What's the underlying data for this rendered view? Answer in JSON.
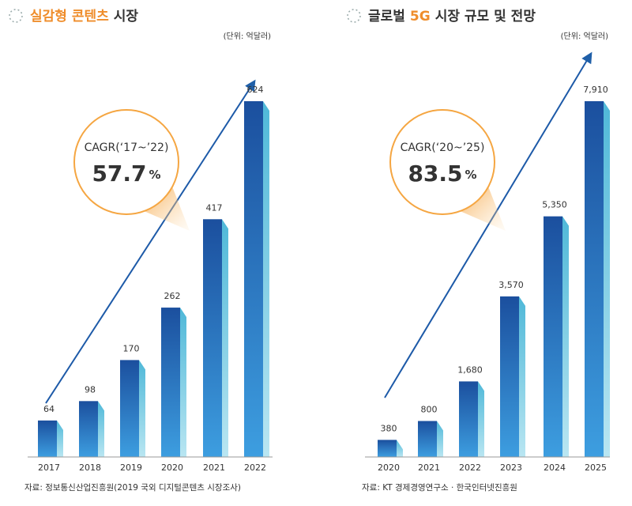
{
  "chart_data": [
    {
      "type": "bar",
      "title_parts": [
        {
          "text": "실감형 콘텐츠",
          "highlight": true
        },
        {
          "text": "시장",
          "highlight": false
        }
      ],
      "unit": "(단위: 억달러)",
      "annotation": {
        "label": "CAGR(‘17~’22)",
        "value": 57.7,
        "unit": "%"
      },
      "categories": [
        "2017",
        "2018",
        "2019",
        "2020",
        "2021",
        "2022"
      ],
      "values": [
        64,
        98,
        170,
        262,
        417,
        624
      ],
      "source": "자료: 정보통신산업진흥원(2019 국외 디지털콘텐츠 시장조사)",
      "color": "#1d5aa8"
    },
    {
      "type": "bar",
      "title_parts": [
        {
          "text": "글로벌",
          "highlight": false
        },
        {
          "text": "5G",
          "highlight": true
        },
        {
          "text": "시장 규모 및 전망",
          "highlight": false
        }
      ],
      "unit": "(단위: 억달러)",
      "annotation": {
        "label": "CAGR(‘20~’25)",
        "value": 83.5,
        "unit": "%"
      },
      "categories": [
        "2020",
        "2021",
        "2022",
        "2023",
        "2024",
        "2025"
      ],
      "values": [
        380,
        800,
        1680,
        3570,
        5350,
        7910
      ],
      "value_labels": [
        "380",
        "800",
        "1,680",
        "3,570",
        "5,350",
        "7,910"
      ],
      "source": "자료: KT 경제경영연구소 · 한국인터넷진흥원",
      "color": "#1d5aa8"
    }
  ]
}
